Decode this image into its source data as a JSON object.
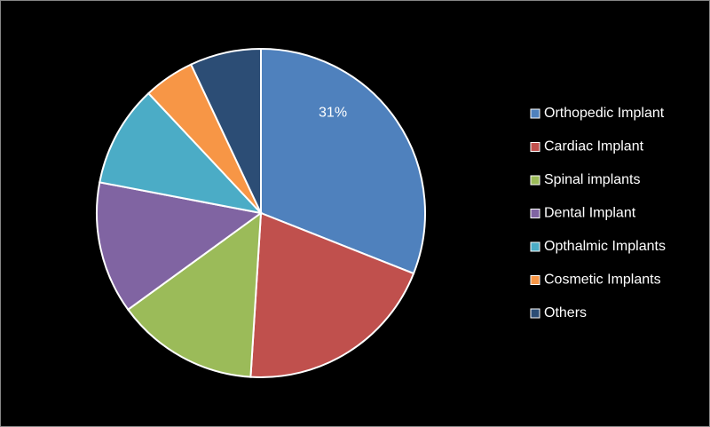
{
  "chart_data": {
    "type": "pie",
    "categories": [
      "Orthopedic Implant",
      "Cardiac Implant",
      "Spinal implants",
      "Dental Implant",
      "Opthalmic Implants",
      "Cosmetic Implants",
      "Others"
    ],
    "values": [
      31,
      20,
      14,
      13,
      10,
      5,
      7
    ],
    "value_labels": [
      "31%",
      null,
      null,
      null,
      null,
      null,
      null
    ],
    "colors": [
      "#4f81bd",
      "#c0504d",
      "#9bbb59",
      "#8064a2",
      "#4bacc6",
      "#f79646",
      "#2c4d75"
    ],
    "legend": "right"
  }
}
